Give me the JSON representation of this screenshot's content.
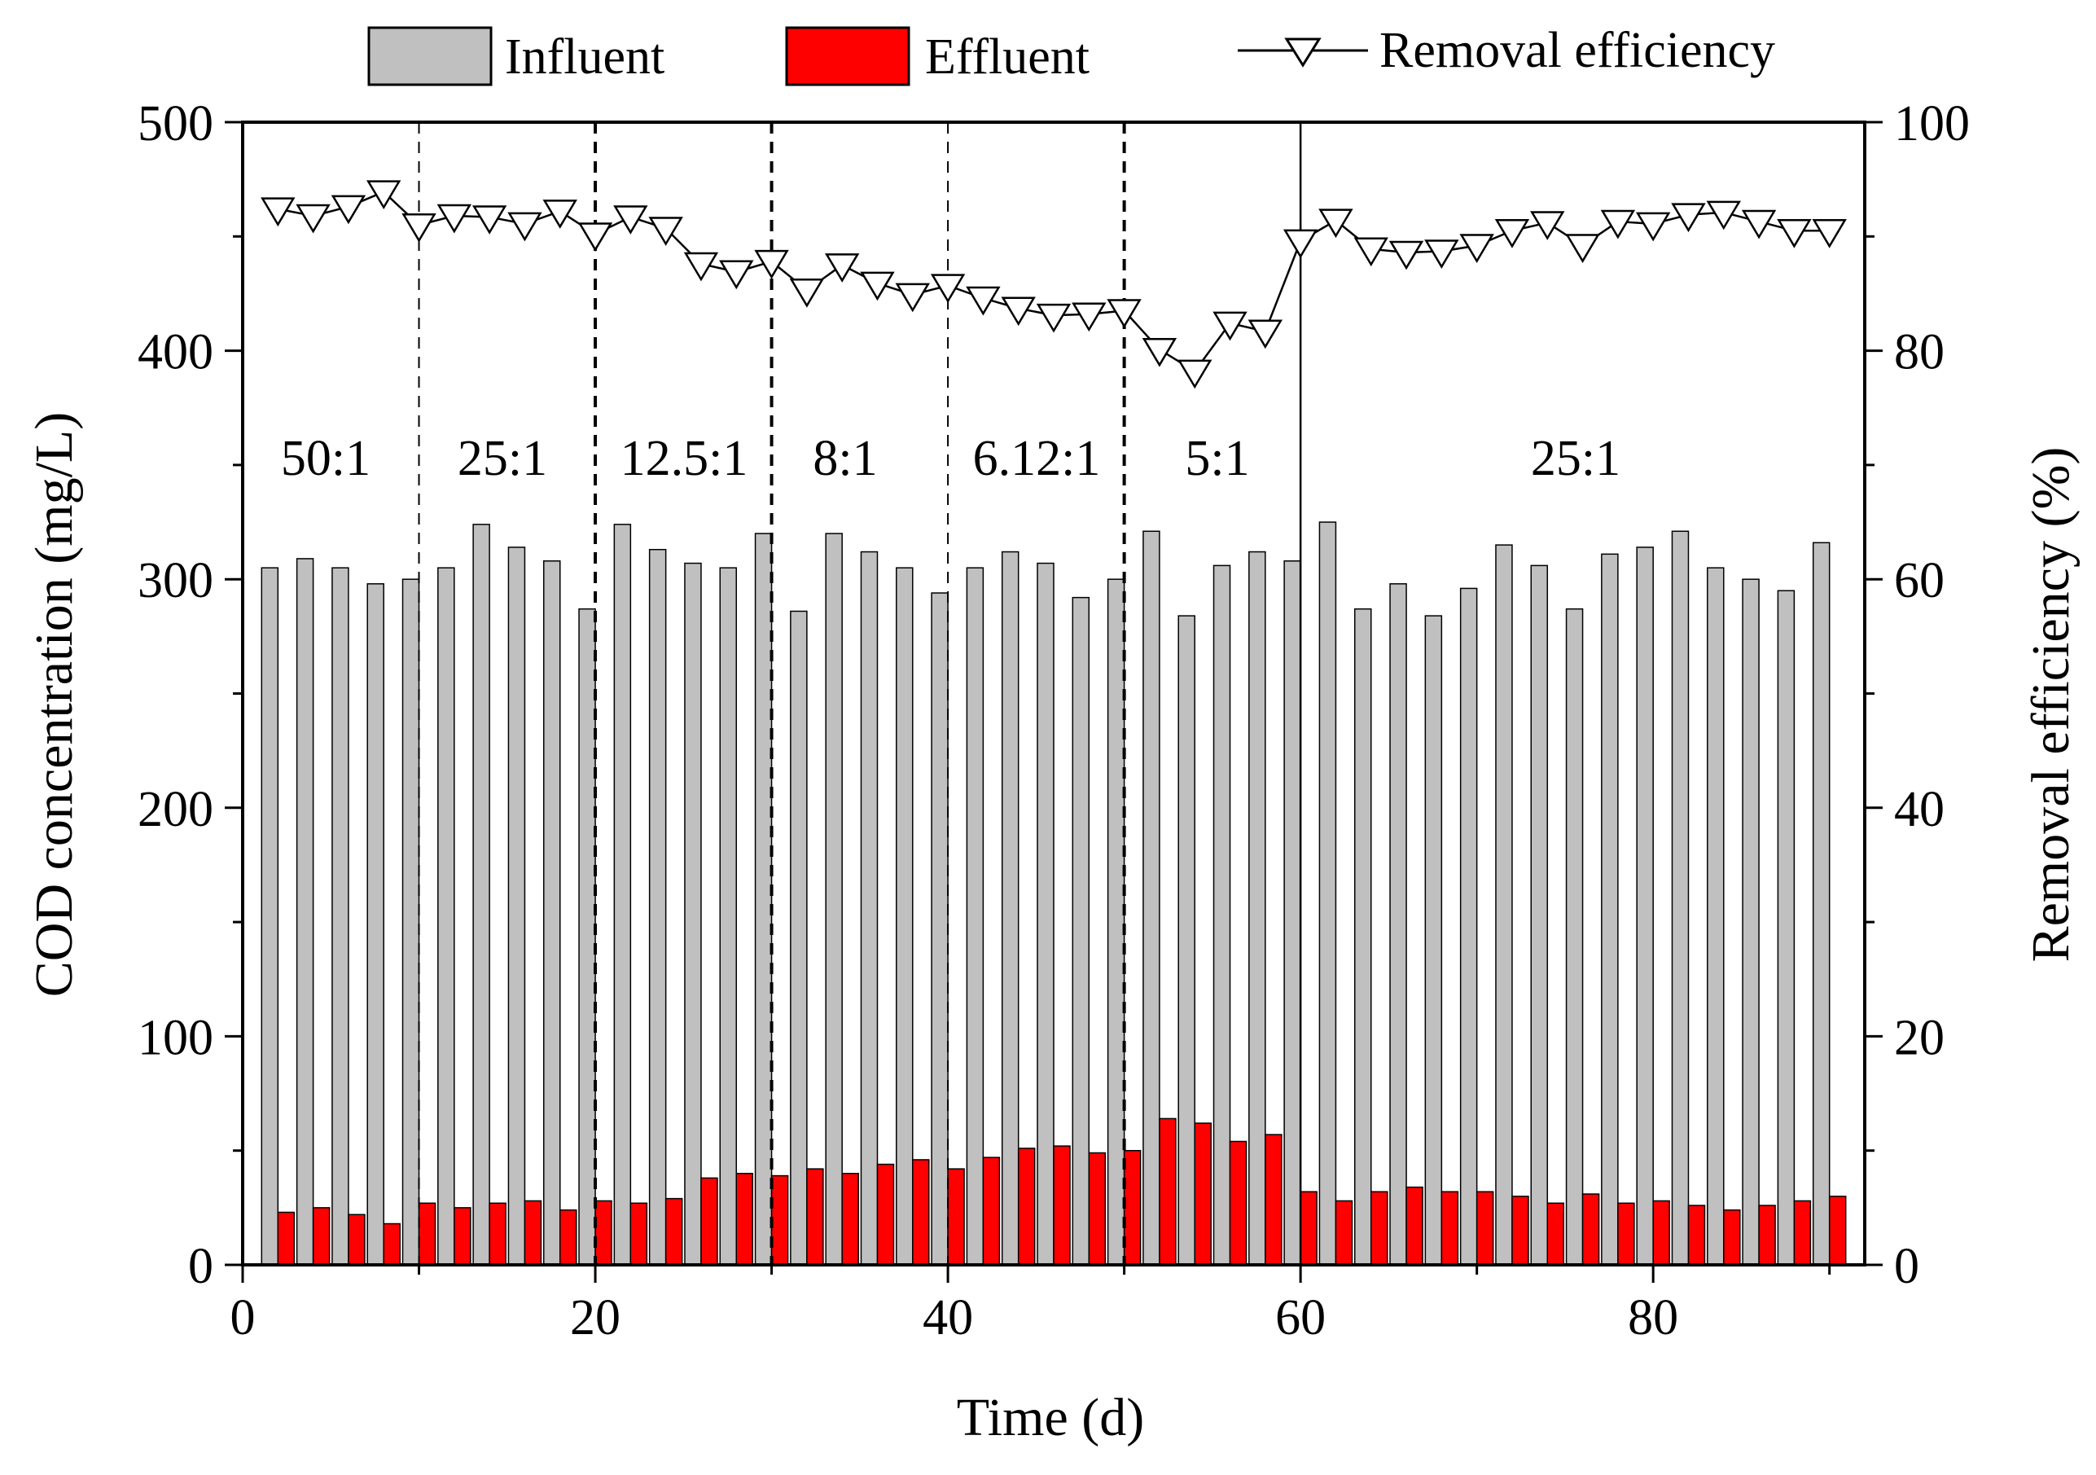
{
  "chart_data": {
    "type": "bar+line",
    "title": "",
    "xlabel": "Time (d)",
    "ylabel": "COD concentration (mg/L)",
    "y2label": "Removal efficiency (%)",
    "xlim": [
      0,
      92
    ],
    "ylim": [
      0,
      500
    ],
    "y2lim": [
      0,
      100
    ],
    "xticks": [
      0,
      20,
      40,
      60,
      80
    ],
    "yticks": [
      0,
      100,
      200,
      300,
      400,
      500
    ],
    "y2ticks": [
      0,
      20,
      40,
      60,
      80,
      100
    ],
    "x": [
      2,
      4,
      6,
      8,
      10,
      12,
      14,
      16,
      18,
      20,
      22,
      24,
      26,
      28,
      30,
      32,
      34,
      36,
      38,
      40,
      42,
      44,
      46,
      48,
      50,
      52,
      54,
      56,
      58,
      60,
      62,
      64,
      66,
      68,
      70,
      72,
      74,
      76,
      78,
      80,
      82,
      84,
      86,
      88,
      90
    ],
    "series": [
      {
        "name": "Influent",
        "type": "bar",
        "color": "#c0c0c0",
        "axis": "left",
        "values": [
          305,
          309,
          305,
          298,
          300,
          305,
          324,
          314,
          308,
          287,
          324,
          313,
          307,
          305,
          320,
          286,
          320,
          312,
          305,
          294,
          305,
          312,
          307,
          292,
          300,
          321,
          284,
          306,
          312,
          308,
          325,
          287,
          298,
          284,
          296,
          315,
          306,
          287,
          311,
          314,
          321,
          305,
          300,
          295,
          316
        ]
      },
      {
        "name": "Effluent",
        "type": "bar",
        "color": "#ff0000",
        "axis": "left",
        "values": [
          23,
          25,
          22,
          18,
          27,
          25,
          27,
          28,
          24,
          28,
          27,
          29,
          38,
          40,
          39,
          42,
          40,
          44,
          46,
          42,
          47,
          51,
          52,
          49,
          50,
          64,
          62,
          54,
          57,
          32,
          28,
          32,
          34,
          32,
          32,
          30,
          27,
          31,
          27,
          28,
          26,
          24,
          26,
          28,
          30
        ]
      },
      {
        "name": "Removal efficiency",
        "type": "line",
        "marker": "down-triangle",
        "axis": "right",
        "values": [
          92.4,
          91.8,
          92.6,
          93.9,
          91,
          91.8,
          91.7,
          91.1,
          92.2,
          90.2,
          91.7,
          90.7,
          87.6,
          86.9,
          87.8,
          85.3,
          87.5,
          85.9,
          84.9,
          85.7,
          84.6,
          83.7,
          83.1,
          83.2,
          83.5,
          80.1,
          78.2,
          82.4,
          81.7,
          89.6,
          91.4,
          88.9,
          88.6,
          88.7,
          89.2,
          90.5,
          91.2,
          89.2,
          91.3,
          91.1,
          91.9,
          92.1,
          91.3,
          90.5,
          90.5
        ]
      }
    ],
    "phases": [
      {
        "label": "50:1",
        "x_start": 0,
        "x_end": 10
      },
      {
        "label": "25:1",
        "x_start": 10,
        "x_end": 20
      },
      {
        "label": "12.5:1",
        "x_start": 20,
        "x_end": 30
      },
      {
        "label": "8:1",
        "x_start": 30,
        "x_end": 40
      },
      {
        "label": "6.12:1",
        "x_start": 40,
        "x_end": 50
      },
      {
        "label": "5:1",
        "x_start": 50,
        "x_end": 60
      },
      {
        "label": "25:1",
        "x_start": 60,
        "x_end": 92
      }
    ],
    "phase_boundaries": [
      {
        "x": 10,
        "style": "thin-dashed"
      },
      {
        "x": 20,
        "style": "bold-dashed"
      },
      {
        "x": 30,
        "style": "bold-dashed"
      },
      {
        "x": 40,
        "style": "thin-dashed"
      },
      {
        "x": 50,
        "style": "bold-dashed"
      },
      {
        "x": 60,
        "style": "solid"
      }
    ],
    "legend": [
      "Influent",
      "Effluent",
      "Removal efficiency"
    ],
    "legend_position": "top"
  }
}
